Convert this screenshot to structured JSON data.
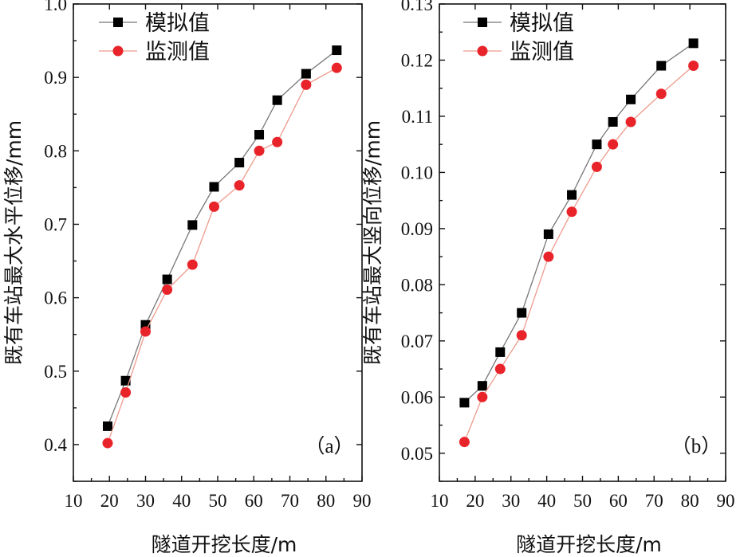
{
  "chart_data": [
    {
      "type": "line",
      "panel_label": "（a）",
      "xlabel": "隧道开挖长度/m",
      "ylabel": "既有车站最大水平位移/mm",
      "xlim": [
        10,
        90
      ],
      "ylim": [
        0.35,
        1.0
      ],
      "xticks": [
        10,
        20,
        30,
        40,
        50,
        60,
        70,
        80,
        90
      ],
      "yticks": [
        0.4,
        0.5,
        0.6,
        0.7,
        0.8,
        0.9,
        1.0
      ],
      "xtick_labels": [
        "10",
        "20",
        "30",
        "40",
        "50",
        "60",
        "70",
        "80",
        "90"
      ],
      "ytick_labels": [
        "0.4",
        "0.5",
        "0.6",
        "0.7",
        "0.8",
        "0.9",
        "1.0"
      ],
      "legend": "top-left",
      "grid": false,
      "series": [
        {
          "name": "模拟值",
          "color": "#000000",
          "line_color": "#777777",
          "marker": "square",
          "x": [
            19.5,
            24.5,
            30,
            36,
            43,
            49,
            56,
            61.5,
            66.5,
            74.5,
            83
          ],
          "y": [
            0.425,
            0.487,
            0.563,
            0.625,
            0.699,
            0.751,
            0.784,
            0.822,
            0.869,
            0.905,
            0.937
          ]
        },
        {
          "name": "监测值",
          "color": "#e8242a",
          "line_color": "#ee9a8c",
          "marker": "circle",
          "x": [
            19.5,
            24.5,
            30,
            36,
            43,
            49,
            56,
            61.5,
            66.5,
            74.5,
            83
          ],
          "y": [
            0.402,
            0.471,
            0.554,
            0.611,
            0.645,
            0.724,
            0.753,
            0.8,
            0.812,
            0.89,
            0.913
          ]
        }
      ]
    },
    {
      "type": "line",
      "panel_label": "（b）",
      "xlabel": "隧道开挖长度/m",
      "ylabel": "既有车站最大竖向位移/mm",
      "xlim": [
        10,
        90
      ],
      "ylim": [
        0.045,
        0.13
      ],
      "xticks": [
        10,
        20,
        30,
        40,
        50,
        60,
        70,
        80,
        90
      ],
      "yticks": [
        0.05,
        0.06,
        0.07,
        0.08,
        0.09,
        0.1,
        0.11,
        0.12,
        0.13
      ],
      "xtick_labels": [
        "10",
        "20",
        "30",
        "40",
        "50",
        "60",
        "70",
        "80",
        "90"
      ],
      "ytick_labels": [
        "0.05",
        "0.06",
        "0.07",
        "0.08",
        "0.09",
        "0.10",
        "0.11",
        "0.12",
        "0.13"
      ],
      "legend": "top-left",
      "grid": false,
      "series": [
        {
          "name": "模拟值",
          "color": "#000000",
          "line_color": "#777777",
          "marker": "square",
          "x": [
            17,
            22,
            27,
            33,
            40.5,
            47,
            54,
            58.5,
            63.5,
            72,
            81
          ],
          "y": [
            0.059,
            0.062,
            0.068,
            0.075,
            0.089,
            0.096,
            0.105,
            0.109,
            0.113,
            0.119,
            0.123
          ]
        },
        {
          "name": "监测值",
          "color": "#e8242a",
          "line_color": "#ee9a8c",
          "marker": "circle",
          "x": [
            17,
            22,
            27,
            33,
            40.5,
            47,
            54,
            58.5,
            63.5,
            72,
            81
          ],
          "y": [
            0.052,
            0.06,
            0.065,
            0.071,
            0.085,
            0.093,
            0.101,
            0.105,
            0.109,
            0.114,
            0.119
          ]
        }
      ]
    }
  ]
}
